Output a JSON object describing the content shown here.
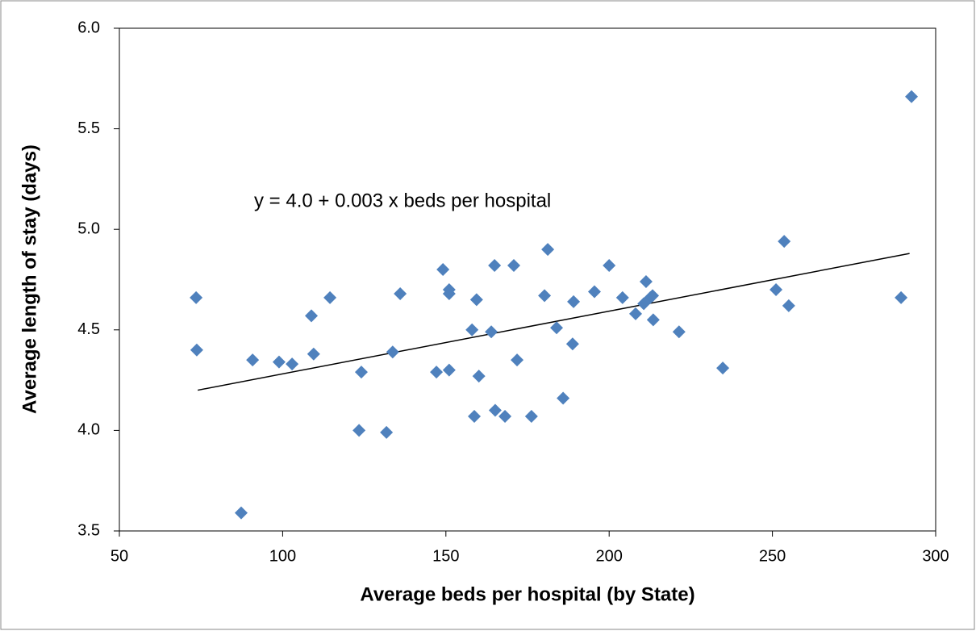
{
  "chart_data": {
    "type": "scatter",
    "annotation": "y = 4.0 + 0.003 x  beds per hospital",
    "x_label": "Average beds per hospital (by State)",
    "y_label": "Average length of stay (days)",
    "color": "#4f81bd",
    "x": [
      73.5,
      73.7,
      87.3,
      90.8,
      98.9,
      102.9,
      108.8,
      109.5,
      114.5,
      123.4,
      124.1,
      131.8,
      133.7,
      136.0,
      147.1,
      149.1,
      151.0,
      151.0,
      151.0,
      158.0,
      158.7,
      159.4,
      160.1,
      163.9,
      164.9,
      165.1,
      168.1,
      170.8,
      171.8,
      176.2,
      180.2,
      181.2,
      183.9,
      185.9,
      188.8,
      189.1,
      195.5,
      200.0,
      204.1,
      208.1,
      210.6,
      211.3,
      212.6,
      213.3,
      213.5,
      221.4,
      234.8,
      251.1,
      253.6,
      255.0,
      289.4,
      292.6
    ],
    "values": [
      4.66,
      4.4,
      3.59,
      4.35,
      4.34,
      4.33,
      4.57,
      4.38,
      4.66,
      4.0,
      4.29,
      3.99,
      4.39,
      4.68,
      4.29,
      4.8,
      4.7,
      4.68,
      4.3,
      4.5,
      4.07,
      4.65,
      4.27,
      4.49,
      4.82,
      4.1,
      4.07,
      4.82,
      4.35,
      4.07,
      4.67,
      4.9,
      4.51,
      4.16,
      4.43,
      4.64,
      4.69,
      4.82,
      4.66,
      4.58,
      4.63,
      4.74,
      4.66,
      4.67,
      4.55,
      4.49,
      4.31,
      4.7,
      4.94,
      4.62,
      4.66,
      5.66
    ],
    "trendline": {
      "x": [
        74,
        292
      ],
      "values": [
        4.2,
        4.88
      ],
      "color": "#000000"
    },
    "xlim": [
      50,
      300
    ],
    "xticks": [
      50,
      100,
      150,
      200,
      250,
      300
    ],
    "ylim": [
      3.5,
      6.0
    ],
    "yticks": [
      {
        "value": 3.5,
        "label": "3.5"
      },
      {
        "value": 4.0,
        "label": "4.0"
      },
      {
        "value": 4.5,
        "label": "4.5"
      },
      {
        "value": 5.0,
        "label": "5.0"
      },
      {
        "value": 5.5,
        "label": "5.5"
      },
      {
        "value": 6.0,
        "label": "6.0"
      }
    ]
  }
}
